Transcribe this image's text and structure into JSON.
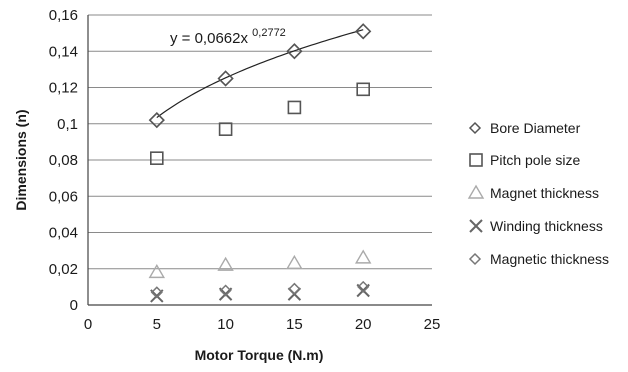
{
  "chart_data": {
    "type": "scatter",
    "title": "",
    "xlabel": "Motor Torque (N.m)",
    "ylabel": "Dimensions (n)",
    "xlim": [
      0,
      25
    ],
    "ylim": [
      0,
      0.16
    ],
    "x_ticks": [
      0,
      5,
      10,
      15,
      20,
      25
    ],
    "x_tick_labels": [
      "0",
      "5",
      "10",
      "15",
      "20",
      "25"
    ],
    "y_ticks": [
      0,
      0.02,
      0.04,
      0.06,
      0.08,
      0.1,
      0.12,
      0.14,
      0.16
    ],
    "y_tick_labels": [
      "0",
      "0,02",
      "0,04",
      "0,06",
      "0,08",
      "0,1",
      "0,12",
      "0,14",
      "0,16"
    ],
    "grid": "horizontal",
    "legend_position": "right",
    "series": [
      {
        "name": "Bore Diameter",
        "marker": "diamond",
        "color": "#555555",
        "x": [
          5,
          10,
          15,
          20
        ],
        "y": [
          0.102,
          0.125,
          0.14,
          0.151
        ]
      },
      {
        "name": "Pitch pole size",
        "marker": "square",
        "color": "#555555",
        "x": [
          5,
          10,
          15,
          20
        ],
        "y": [
          0.081,
          0.097,
          0.109,
          0.119
        ]
      },
      {
        "name": "Magnet thickness",
        "marker": "triangle",
        "color": "#aaaaaa",
        "x": [
          5,
          10,
          15,
          20
        ],
        "y": [
          0.018,
          0.022,
          0.023,
          0.026
        ]
      },
      {
        "name": "Winding thickness",
        "marker": "x",
        "color": "#666666",
        "x": [
          5,
          10,
          15,
          20
        ],
        "y": [
          0.005,
          0.006,
          0.006,
          0.008
        ]
      },
      {
        "name": "Magnetic thickness",
        "marker": "diamond-small",
        "color": "#777777",
        "x": [
          5,
          10,
          15,
          20
        ],
        "y": [
          0.007,
          0.008,
          0.009,
          0.01
        ]
      }
    ],
    "trendline": {
      "series": "Bore Diameter",
      "equation": "y = 0,0662x",
      "exponent": "0,2772",
      "a": 0.0662,
      "b": 0.2772,
      "x_range": [
        5,
        20
      ]
    }
  }
}
